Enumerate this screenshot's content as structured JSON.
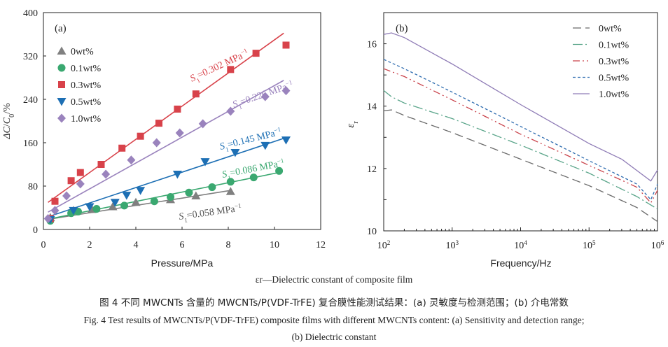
{
  "chart_data": [
    {
      "type": "scatter",
      "panel_label": "(a)",
      "xlabel": "Pressure/MPa",
      "ylabel": "ΔC/C0/%",
      "xlim": [
        0,
        12
      ],
      "ylim": [
        0,
        400
      ],
      "xticks": [
        "0",
        "2",
        "4",
        "6",
        "8",
        "10",
        "12"
      ],
      "yticks": [
        "0",
        "80",
        "160",
        "240",
        "320",
        "400"
      ],
      "legend_position": "left",
      "series": [
        {
          "name": "0wt%",
          "color": "#808080",
          "marker": "triangle-up",
          "points": [
            [
              0.3,
              22
            ],
            [
              1.3,
              35
            ],
            [
              2.1,
              37
            ],
            [
              3.0,
              42
            ],
            [
              4.0,
              50
            ],
            [
              5.5,
              55
            ],
            [
              6.6,
              62
            ],
            [
              8.1,
              70
            ]
          ],
          "fit": [
            [
              0.1,
              18
            ],
            [
              8.1,
              72
            ]
          ],
          "annotation": "S1=0.058 MPa-1"
        },
        {
          "name": "0.1wt%",
          "color": "#3aa870",
          "marker": "circle",
          "points": [
            [
              0.3,
              16
            ],
            [
              1.2,
              30
            ],
            [
              1.5,
              33
            ],
            [
              2.3,
              38
            ],
            [
              3.5,
              44
            ],
            [
              4.8,
              52
            ],
            [
              5.5,
              60
            ],
            [
              6.3,
              68
            ],
            [
              7.3,
              78
            ],
            [
              8.1,
              88
            ],
            [
              9.1,
              96
            ],
            [
              10.2,
              108
            ]
          ],
          "fit": [
            [
              0.1,
              18
            ],
            [
              10.3,
              106
            ]
          ],
          "annotation": "S1=0.086 MPa-1"
        },
        {
          "name": "0.3wt%",
          "color": "#d8424a",
          "marker": "square",
          "points": [
            [
              0.3,
              20
            ],
            [
              0.5,
              52
            ],
            [
              1.2,
              90
            ],
            [
              1.6,
              105
            ],
            [
              2.5,
              120
            ],
            [
              3.4,
              150
            ],
            [
              4.2,
              172
            ],
            [
              5.0,
              196
            ],
            [
              5.8,
              222
            ],
            [
              6.6,
              250
            ],
            [
              8.1,
              295
            ],
            [
              9.2,
              325
            ],
            [
              10.5,
              340
            ]
          ],
          "fit": [
            [
              0.2,
              50
            ],
            [
              10.4,
              362
            ]
          ],
          "annotation": "S1=0.302 MPa-1"
        },
        {
          "name": "0.5wt%",
          "color": "#1d6fb4",
          "marker": "triangle-down",
          "points": [
            [
              0.3,
              18
            ],
            [
              1.3,
              35
            ],
            [
              2.0,
              42
            ],
            [
              3.1,
              50
            ],
            [
              3.6,
              63
            ],
            [
              4.2,
              72
            ],
            [
              5.8,
              102
            ],
            [
              7.0,
              125
            ],
            [
              8.3,
              142
            ],
            [
              9.6,
              155
            ],
            [
              10.5,
              165
            ]
          ],
          "fit": [
            [
              0.1,
              22
            ],
            [
              10.4,
              168
            ]
          ],
          "annotation": "S1=0.145 MPa-1"
        },
        {
          "name": "1.0wt%",
          "color": "#9a83bd",
          "marker": "diamond",
          "points": [
            [
              0.2,
              20
            ],
            [
              0.5,
              35
            ],
            [
              1.0,
              62
            ],
            [
              1.6,
              84
            ],
            [
              2.7,
              102
            ],
            [
              3.8,
              128
            ],
            [
              4.9,
              160
            ],
            [
              5.9,
              178
            ],
            [
              6.9,
              195
            ],
            [
              8.1,
              218
            ],
            [
              9.6,
              245
            ],
            [
              10.5,
              256
            ]
          ],
          "fit": [
            [
              0.2,
              32
            ],
            [
              10.4,
              275
            ]
          ],
          "annotation": "S1=0.226 MPa-1"
        }
      ]
    },
    {
      "type": "line",
      "panel_label": "(b)",
      "xlabel": "Frequency/Hz",
      "ylabel": "εr",
      "xscale": "log",
      "xlim": [
        100,
        1000000
      ],
      "ylim": [
        10,
        17
      ],
      "xticks": [
        "10^2",
        "10^3",
        "10^4",
        "10^5",
        "10^6"
      ],
      "yticks": [
        "10",
        "12",
        "14",
        "16"
      ],
      "legend_position": "top-right",
      "series": [
        {
          "name": "0wt%",
          "color": "#6b6b6b",
          "dash": "12 6",
          "points": [
            [
              100,
              13.85
            ],
            [
              130,
              13.88
            ],
            [
              200,
              13.7
            ],
            [
              1000,
              13.15
            ],
            [
              10000,
              12.3
            ],
            [
              100000,
              11.45
            ],
            [
              500000,
              10.75
            ],
            [
              1000000,
              10.3
            ]
          ]
        },
        {
          "name": "0.1wt%",
          "color": "#5aa58a",
          "dash": "14 4 2 4",
          "points": [
            [
              100,
              14.5
            ],
            [
              130,
              14.3
            ],
            [
              200,
              14.1
            ],
            [
              1000,
              13.6
            ],
            [
              10000,
              12.75
            ],
            [
              100000,
              11.85
            ],
            [
              500000,
              11.1
            ],
            [
              1000000,
              10.7
            ]
          ]
        },
        {
          "name": "0.3wt%",
          "color": "#c9424a",
          "dash": "10 4 2 4 2 4",
          "points": [
            [
              100,
              15.2
            ],
            [
              200,
              14.95
            ],
            [
              1000,
              14.2
            ],
            [
              10000,
              13.1
            ],
            [
              100000,
              12.1
            ],
            [
              500000,
              11.4
            ],
            [
              800000,
              10.9
            ],
            [
              1000000,
              11.3
            ]
          ]
        },
        {
          "name": "0.5wt%",
          "color": "#2f6db0",
          "dash": "4 3",
          "points": [
            [
              100,
              15.5
            ],
            [
              200,
              15.2
            ],
            [
              1000,
              14.45
            ],
            [
              10000,
              13.35
            ],
            [
              100000,
              12.25
            ],
            [
              500000,
              11.5
            ],
            [
              800000,
              11.0
            ],
            [
              1000000,
              11.5
            ]
          ]
        },
        {
          "name": "1.0wt%",
          "color": "#8f7cb6",
          "dash": "",
          "points": [
            [
              100,
              16.3
            ],
            [
              130,
              16.35
            ],
            [
              200,
              16.2
            ],
            [
              1000,
              15.35
            ],
            [
              10000,
              14.05
            ],
            [
              100000,
              12.8
            ],
            [
              300000,
              12.3
            ],
            [
              800000,
              11.6
            ],
            [
              1000000,
              11.95
            ]
          ]
        }
      ]
    }
  ],
  "captions": {
    "symbol_line": "εr—Dielectric constant of composite film",
    "chinese": "图 4   不同 MWCNTs 含量的 MWCNTs/P(VDF-TrFE) 复合膜性能测试结果：(a) 灵敏度与检测范围；(b) 介电常数",
    "english_1": "Fig. 4   Test results of MWCNTs/P(VDF-TrFE) composite films with different MWCNTs content: (a) Sensitivity and detection range;",
    "english_2": "(b) Dielectric constant"
  }
}
